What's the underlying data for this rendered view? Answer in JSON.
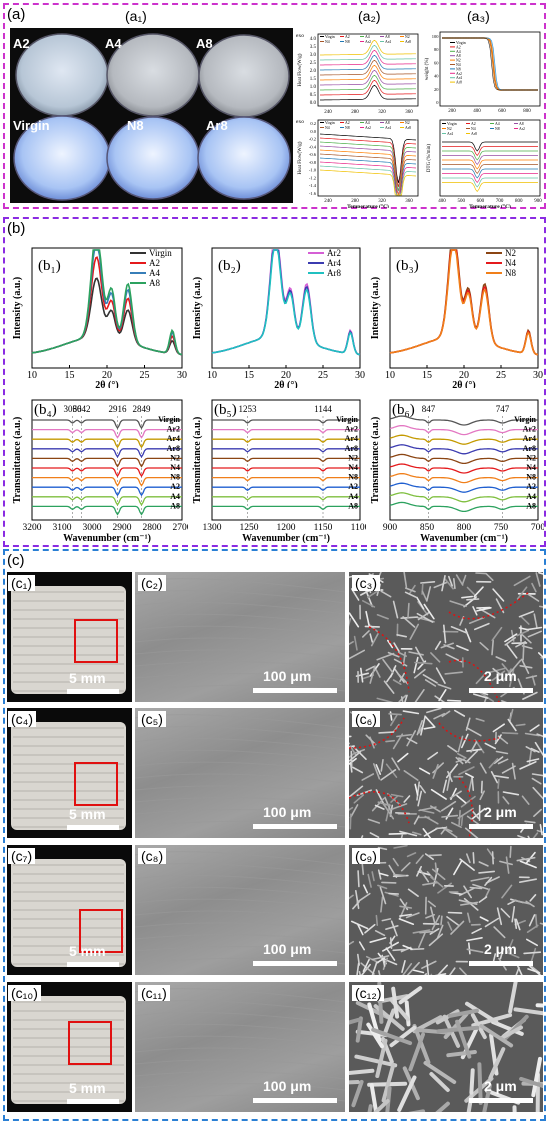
{
  "panel_a": {
    "label": "(a)",
    "sub_a1": "(a₁)",
    "sub_a2": "(a₂)",
    "sub_a3": "(a₃)",
    "petri_labels": [
      "A2",
      "A4",
      "A8",
      "Virgin",
      "N8",
      "Ar8"
    ],
    "dsc": {
      "top_y_ticks": [
        "4.0",
        "3.5",
        "3.0",
        "2.5",
        "2.0",
        "1.5",
        "1.0",
        "0.5",
        "0.0"
      ],
      "top_ylabel": "Heat Flow(W/g)",
      "exo": "exo",
      "x_ticks": [
        "240",
        "280",
        "320",
        "360"
      ],
      "bottom_y_ticks": [
        "0.2",
        "0.0",
        "-0.2",
        "-0.4",
        "-0.6",
        "-0.8",
        "-1.0",
        "-1.2",
        "-1.4",
        "-1.6"
      ],
      "bottom_ylabel": "Heat Flow(W/g)",
      "xlabel": "Temperature (°C)",
      "legend": [
        "Virgin",
        "A2",
        "A4",
        "A8",
        "N2",
        "N4",
        "N8",
        "Ar2",
        "Ar4",
        "Ar8"
      ],
      "colors": [
        "#000000",
        "#e41a1c",
        "#4daf4a",
        "#984ea3",
        "#ff7f00",
        "#a65628",
        "#1f78b4",
        "#e7298a",
        "#66c2a5",
        "#f0c000"
      ]
    },
    "tga": {
      "top_ylabel": "weight (%)",
      "top_y_ticks": [
        "100",
        "80",
        "60",
        "40",
        "20",
        "0"
      ],
      "top_x_ticks": [
        "200",
        "400",
        "600",
        "800"
      ],
      "bottom_ylabel": "DTG (%/min)",
      "x_ticks": [
        "400",
        "500",
        "600",
        "700",
        "800",
        "900"
      ],
      "xlabel": "Temperature (°C)",
      "legend": [
        "Virgin",
        "A2",
        "A4",
        "A8",
        "N2",
        "N4",
        "N8",
        "Ar2",
        "Ar4",
        "Ar8"
      ]
    }
  },
  "panel_b": {
    "label": "(b)",
    "xrd": [
      {
        "sub": "(b₁)",
        "legend": [
          "Virgin",
          "A2",
          "A4",
          "A8"
        ],
        "colors": [
          "#333333",
          "#e41a1c",
          "#377eb8",
          "#2ca25f"
        ]
      },
      {
        "sub": "(b₂)",
        "legend": [
          "Ar2",
          "Ar4",
          "Ar8"
        ],
        "colors": [
          "#d55fd5",
          "#3b3bb0",
          "#20c0c0"
        ]
      },
      {
        "sub": "(b₃)",
        "legend": [
          "N2",
          "N4",
          "N8"
        ],
        "colors": [
          "#8b4513",
          "#e41a1c",
          "#f07f1a"
        ]
      }
    ],
    "xrd_ylabel": "Intensity (a.u.)",
    "xrd_xlabel": "2θ (°)",
    "xrd_x_ticks": [
      "10",
      "15",
      "20",
      "25",
      "30"
    ],
    "ftir_ylabel": "Transmittance (a.u.)",
    "ftir_xlabel": "Wavenumber (cm⁻¹)",
    "ftir_legend": [
      "Virgin",
      "Ar2",
      "Ar4",
      "Ar8",
      "N2",
      "N4",
      "N8",
      "A2",
      "A4",
      "A8"
    ],
    "ftir_colors": [
      "#555555",
      "#e377c2",
      "#c49a00",
      "#3b3bb0",
      "#8b4513",
      "#e41a1c",
      "#f07f1a",
      "#1f5fd0",
      "#7fbf3f",
      "#2ca25f"
    ],
    "ftir": [
      {
        "sub": "(b₄)",
        "x_ticks": [
          "3200",
          "3100",
          "3000",
          "2900",
          "2800",
          "2700"
        ],
        "peaks": [
          "3066",
          "3042",
          "2916",
          "2849"
        ]
      },
      {
        "sub": "(b₅)",
        "x_ticks": [
          "1300",
          "1250",
          "1200",
          "1150",
          "1100"
        ],
        "peaks": [
          "1253",
          "1144"
        ]
      },
      {
        "sub": "(b₆)",
        "x_ticks": [
          "900",
          "850",
          "800",
          "750",
          "700"
        ],
        "peaks": [
          "847",
          "747"
        ]
      }
    ]
  },
  "panel_c": {
    "label": "(c)",
    "rows": [
      {
        "photo": "(c₁)",
        "sem1": "(c₂)",
        "sem2": "(c₃)"
      },
      {
        "photo": "(c₄)",
        "sem1": "(c₅)",
        "sem2": "(c₆)"
      },
      {
        "photo": "(c₇)",
        "sem1": "(c₈)",
        "sem2": "(c₉)"
      },
      {
        "photo": "(c₁₀)",
        "sem1": "(c₁₁)",
        "sem2": "(c₁₂)"
      }
    ],
    "scale_photo": "5 mm",
    "scale_sem1": "100 μm",
    "scale_sem2": "2 μm"
  }
}
